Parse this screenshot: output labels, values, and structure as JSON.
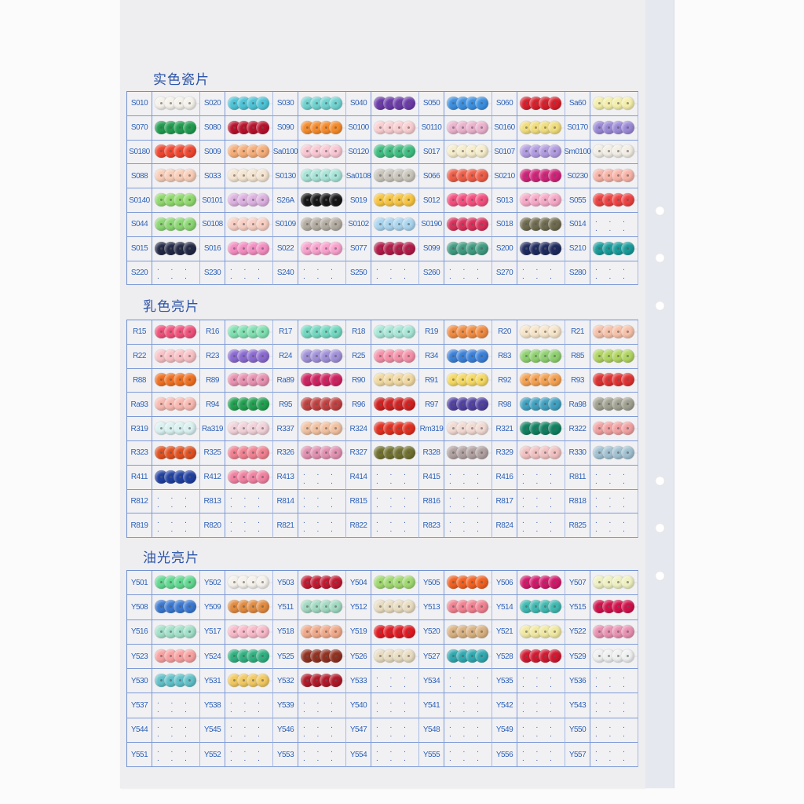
{
  "sections": [
    {
      "title": "实色瓷片",
      "rows": [
        [
          [
            "S010",
            "#f4f1ea"
          ],
          [
            "S020",
            "#4cc3d6"
          ],
          [
            "S030",
            "#6fd3d0"
          ],
          [
            "S040",
            "#6a3aa8"
          ],
          [
            "S050",
            "#3a8fe0"
          ],
          [
            "S060",
            "#d81e2a"
          ],
          [
            "Sa60",
            "#f3eeaa"
          ]
        ],
        [
          [
            "S070",
            "#1f9c4e"
          ],
          [
            "S080",
            "#b8102a"
          ],
          [
            "S090",
            "#f58a2a"
          ],
          [
            "S0100",
            "#f8cdd0"
          ],
          [
            "S0110",
            "#eab0cc"
          ],
          [
            "S0160",
            "#f0dc7a"
          ],
          [
            "S0170",
            "#9a88d6"
          ]
        ],
        [
          [
            "S0180",
            "#f0452e"
          ],
          [
            "S009",
            "#f6ad78"
          ],
          [
            "Sa0100",
            "#f8c6d2"
          ],
          [
            "S0120",
            "#3ebd80"
          ],
          [
            "S017",
            "#f5eccb"
          ],
          [
            "S0107",
            "#b19be0"
          ],
          [
            "Sm0100",
            "#f1ede4"
          ]
        ],
        [
          [
            "S088",
            "#f8ccb6"
          ],
          [
            "S033",
            "#f3e3cf"
          ],
          [
            "S0130",
            "#a5e3d6"
          ],
          [
            "Sa0108",
            "#c8c4ba"
          ],
          [
            "S066",
            "#ef5c46"
          ],
          [
            "S0210",
            "#d0237a"
          ],
          [
            "S0230",
            "#f8b2a6"
          ]
        ],
        [
          [
            "S0140",
            "#8fd96c"
          ],
          [
            "S0101",
            "#dcb0e0"
          ],
          [
            "S26A",
            "#161616"
          ],
          [
            "S019",
            "#f6c440"
          ],
          [
            "S012",
            "#f44e7e"
          ],
          [
            "S013",
            "#f6a8c6"
          ],
          [
            "S055",
            "#ee4040"
          ]
        ],
        [
          [
            "S044",
            "#8ad672"
          ],
          [
            "S0108",
            "#f6cdc1"
          ],
          [
            "S0109",
            "#b2aba0"
          ],
          [
            "S0102",
            "#a9d4ee"
          ],
          [
            "S0190",
            "#d8305a"
          ],
          [
            "S018",
            "#6e6a4e"
          ],
          [
            "S014",
            null
          ]
        ],
        [
          [
            "S015",
            "#222845"
          ],
          [
            "S016",
            "#f28cc0"
          ],
          [
            "S022",
            "#f8a0cc"
          ],
          [
            "S077",
            "#b01a48"
          ],
          [
            "S099",
            "#3f9a80"
          ],
          [
            "S200",
            "#1e2a5e"
          ],
          [
            "S210",
            "#189a9a"
          ]
        ],
        [
          [
            "S220",
            null
          ],
          [
            "S230",
            null
          ],
          [
            "S240",
            null
          ],
          [
            "S250",
            null
          ],
          [
            "S260",
            null
          ],
          [
            "S270",
            null
          ],
          [
            "S280",
            null
          ]
        ]
      ]
    },
    {
      "title": "乳色亮片",
      "rows": [
        [
          [
            "R15",
            "#f0507a"
          ],
          [
            "R16",
            "#7ee0b0"
          ],
          [
            "R17",
            "#70d8c0"
          ],
          [
            "R18",
            "#a6e6d6"
          ],
          [
            "R19",
            "#f08a40"
          ],
          [
            "R20",
            "#f6e4c8"
          ],
          [
            "R21",
            "#f6c0a8"
          ]
        ],
        [
          [
            "R22",
            "#f8c0c4"
          ],
          [
            "R23",
            "#8a6ad0"
          ],
          [
            "R24",
            "#a090d8"
          ],
          [
            "R25",
            "#f490a8"
          ],
          [
            "R34",
            "#3a80d8"
          ],
          [
            "R83",
            "#8ed070"
          ],
          [
            "R85",
            "#b0d460"
          ]
        ],
        [
          [
            "R88",
            "#f07020"
          ],
          [
            "R89",
            "#e890b0"
          ],
          [
            "Ra89",
            "#d02060"
          ],
          [
            "R90",
            "#f0d8a0"
          ],
          [
            "R91",
            "#f4d860"
          ],
          [
            "R92",
            "#f4a050"
          ],
          [
            "R93",
            "#e03030"
          ]
        ],
        [
          [
            "Ra93",
            "#f8b8b0"
          ],
          [
            "R94",
            "#20a050"
          ],
          [
            "R95",
            "#c04040"
          ],
          [
            "R96",
            "#d02020"
          ],
          [
            "R97",
            "#5040a0"
          ],
          [
            "R98",
            "#40a0c0"
          ],
          [
            "Ra98",
            "#a0a090"
          ]
        ],
        [
          [
            "R319",
            "#d8f0f0"
          ],
          [
            "Ra319",
            "#f0d0d8"
          ],
          [
            "R337",
            "#f0c0a0"
          ],
          [
            "R324",
            "#e03020"
          ],
          [
            "Rm319",
            "#f0d8d0"
          ],
          [
            "R321",
            "#108060"
          ],
          [
            "R322",
            "#f0a0a0"
          ]
        ],
        [
          [
            "R323",
            "#e05020"
          ],
          [
            "R325",
            "#f08090"
          ],
          [
            "R326",
            "#e090b0"
          ],
          [
            "R327",
            "#707030"
          ],
          [
            "R328",
            "#b0a0a0"
          ],
          [
            "R329",
            "#f0c0c0"
          ],
          [
            "R330",
            "#a0c0d0"
          ]
        ],
        [
          [
            "R411",
            "#2040a0"
          ],
          [
            "R412",
            "#f080a0"
          ],
          [
            "R413",
            null
          ],
          [
            "R414",
            null
          ],
          [
            "R415",
            null
          ],
          [
            "R416",
            null
          ],
          [
            "R811",
            null
          ]
        ],
        [
          [
            "R812",
            null
          ],
          [
            "R813",
            null
          ],
          [
            "R814",
            null
          ],
          [
            "R815",
            null
          ],
          [
            "R816",
            null
          ],
          [
            "R817",
            null
          ],
          [
            "R818",
            null
          ]
        ],
        [
          [
            "R819",
            null
          ],
          [
            "R820",
            null
          ],
          [
            "R821",
            null
          ],
          [
            "R822",
            null
          ],
          [
            "R823",
            null
          ],
          [
            "R824",
            null
          ],
          [
            "R825",
            null
          ]
        ]
      ]
    },
    {
      "title": "油光亮片",
      "rows": [
        [
          [
            "Y501",
            "#60d890"
          ],
          [
            "Y502",
            "#f4f0ea"
          ],
          [
            "Y503",
            "#c01830"
          ],
          [
            "Y504",
            "#a0d870"
          ],
          [
            "Y505",
            "#f06020"
          ],
          [
            "Y506",
            "#d0186a"
          ],
          [
            "Y507",
            "#eef0c0"
          ]
        ],
        [
          [
            "Y508",
            "#3a78d0"
          ],
          [
            "Y509",
            "#e08a40"
          ],
          [
            "Y511",
            "#a0d8c0"
          ],
          [
            "Y512",
            "#e8dcc0"
          ],
          [
            "Y513",
            "#f08090"
          ],
          [
            "Y514",
            "#40b8b0"
          ],
          [
            "Y515",
            "#d0104a"
          ]
        ],
        [
          [
            "Y516",
            "#a0e0c8"
          ],
          [
            "Y517",
            "#f8b8c8"
          ],
          [
            "Y518",
            "#f0a888"
          ],
          [
            "Y519",
            "#e01820"
          ],
          [
            "Y520",
            "#d8b080"
          ],
          [
            "Y521",
            "#f0e8a0"
          ],
          [
            "Y522",
            "#e890b0"
          ]
        ],
        [
          [
            "Y523",
            "#f8a0a0"
          ],
          [
            "Y524",
            "#30b080"
          ],
          [
            "Y525",
            "#903020"
          ],
          [
            "Y526",
            "#e8dcc0"
          ],
          [
            "Y527",
            "#30a8b0"
          ],
          [
            "Y528",
            "#d01830"
          ],
          [
            "Y529",
            "#eef0f0"
          ]
        ],
        [
          [
            "Y530",
            "#60c0c8"
          ],
          [
            "Y531",
            "#f0c860"
          ],
          [
            "Y532",
            "#b01828"
          ],
          [
            "Y533",
            null
          ],
          [
            "Y534",
            null
          ],
          [
            "Y535",
            null
          ],
          [
            "Y536",
            null
          ]
        ],
        [
          [
            "Y537",
            null
          ],
          [
            "Y538",
            null
          ],
          [
            "Y539",
            null
          ],
          [
            "Y540",
            null
          ],
          [
            "Y541",
            null
          ],
          [
            "Y542",
            null
          ],
          [
            "Y543",
            null
          ]
        ],
        [
          [
            "Y544",
            null
          ],
          [
            "Y545",
            null
          ],
          [
            "Y546",
            null
          ],
          [
            "Y547",
            null
          ],
          [
            "Y548",
            null
          ],
          [
            "Y549",
            null
          ],
          [
            "Y550",
            null
          ]
        ],
        [
          [
            "Y551",
            null
          ],
          [
            "Y552",
            null
          ],
          [
            "Y553",
            null
          ],
          [
            "Y554",
            null
          ],
          [
            "Y555",
            null
          ],
          [
            "Y556",
            null
          ],
          [
            "Y557",
            null
          ]
        ]
      ]
    }
  ],
  "empty_marker": ". . . . . .",
  "colors": {
    "grid_line": "#7d9ad6",
    "label_text": "#2f63b8",
    "card": "#eeedf0"
  }
}
